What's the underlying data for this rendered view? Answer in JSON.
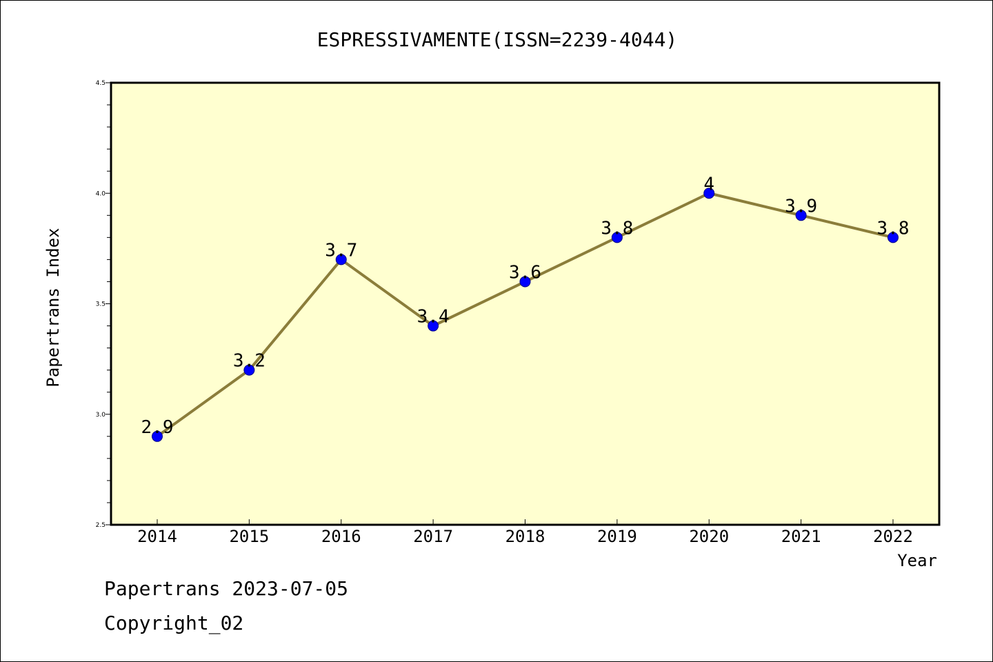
{
  "footer": {
    "line1": "Papertrans 2023-07-05",
    "line2": "Copyright_02"
  },
  "colors": {
    "plot_background": "#ffffd0",
    "line": "#8b7d3a",
    "marker": "#0000ff",
    "axis": "#000000"
  },
  "chart_data": {
    "type": "line",
    "title": "ESPRESSIVAMENTE(ISSN=2239-4044)",
    "xlabel": "Year",
    "ylabel": "Papertrans Index",
    "categories": [
      "2014",
      "2015",
      "2016",
      "2017",
      "2018",
      "2019",
      "2020",
      "2021",
      "2022"
    ],
    "values": [
      2.9,
      3.2,
      3.7,
      3.4,
      3.6,
      3.8,
      4.0,
      3.9,
      3.8
    ],
    "data_labels": [
      "2.9",
      "3.2",
      "3.7",
      "3.4",
      "3.6",
      "3.8",
      "4",
      "3.9",
      "3.8"
    ],
    "ylim": [
      2.5,
      4.5
    ],
    "yticks": [
      "2.5",
      "3.0",
      "3.5",
      "4.0",
      "4.5"
    ],
    "grid": false,
    "legend": "none"
  }
}
